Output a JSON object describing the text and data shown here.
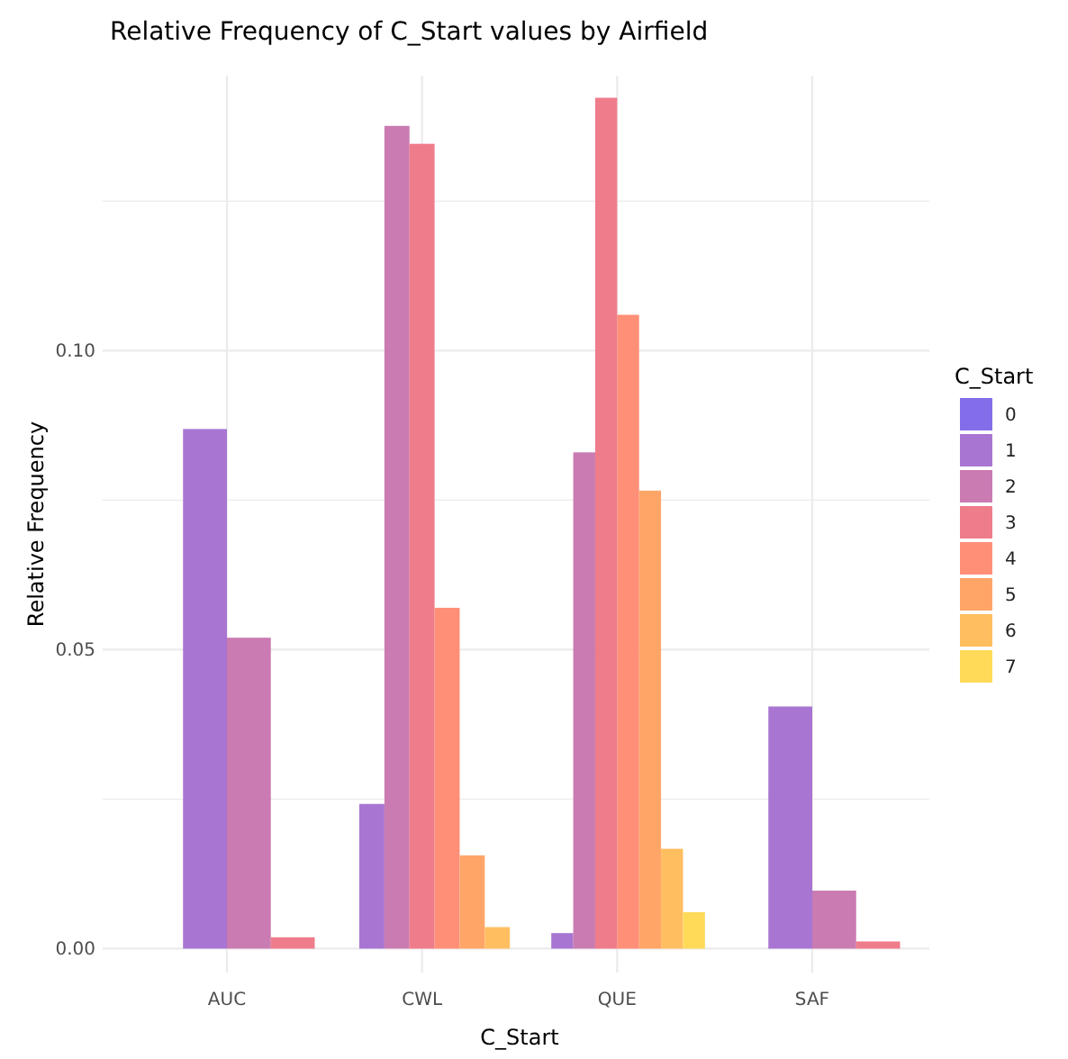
{
  "chart_data": {
    "type": "bar",
    "title": "Relative Frequency of C_Start values by Airfield",
    "xlabel": "C_Start",
    "ylabel": "Relative Frequency",
    "legend_title": "C_Start",
    "categories": [
      "AUC",
      "CWL",
      "QUE",
      "SAF"
    ],
    "series": [
      {
        "name": "0",
        "color": "#7d65e8",
        "values": [
          0,
          0,
          0,
          0
        ]
      },
      {
        "name": "1",
        "color": "#a36fd0",
        "values": [
          0.0869,
          0.0242,
          0.0026,
          0.0405
        ]
      },
      {
        "name": "2",
        "color": "#c774ad",
        "values": [
          0.052,
          0.1376,
          0.083,
          0.0097
        ]
      },
      {
        "name": "3",
        "color": "#ee7585",
        "values": [
          0.0019,
          0.1346,
          0.1423,
          0.0012
        ]
      },
      {
        "name": "4",
        "color": "#ff8970",
        "values": [
          null,
          0.057,
          0.106,
          null
        ]
      },
      {
        "name": "5",
        "color": "#ffa060",
        "values": [
          null,
          0.0156,
          0.0766,
          null
        ]
      },
      {
        "name": "6",
        "color": "#ffbb57",
        "values": [
          null,
          0.0036,
          0.0167,
          null
        ]
      },
      {
        "name": "7",
        "color": "#ffd84f",
        "values": [
          null,
          null,
          0.0061,
          null
        ]
      }
    ],
    "ylim": [
      -0.004,
      0.146
    ],
    "yticks": [
      {
        "value": 0,
        "label": "0.00"
      },
      {
        "value": 0.025,
        "label": null
      },
      {
        "value": 0.05,
        "label": "0.05"
      },
      {
        "value": 0.075,
        "label": null
      },
      {
        "value": 0.1,
        "label": "0.10"
      },
      {
        "value": 0.125,
        "label": null
      }
    ],
    "grid": true,
    "legend": "right"
  }
}
